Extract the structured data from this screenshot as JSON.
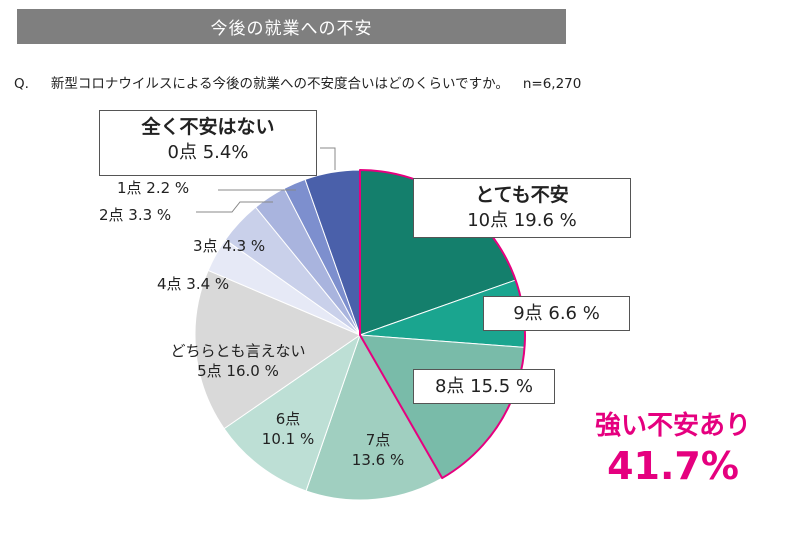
{
  "header": {
    "title": "今後の就業への不安"
  },
  "question": {
    "prefix": "Q.",
    "text": "新型コロナウイルスによる今後の就業への不安度合いはどのくらいですか。",
    "n": "n=6,270"
  },
  "chart_data": {
    "type": "pie",
    "categories": [
      "10点",
      "9点",
      "8点",
      "7点",
      "6点",
      "5点",
      "4点",
      "3点",
      "2点",
      "1点",
      "0点"
    ],
    "values": [
      19.6,
      6.6,
      15.5,
      13.6,
      10.1,
      16.0,
      3.4,
      4.3,
      3.3,
      2.2,
      5.4
    ],
    "colors": [
      "#147f6c",
      "#1aa58f",
      "#79bba9",
      "#a0cfc0",
      "#bddfd5",
      "#d9d9d9",
      "#e6e9f6",
      "#c9d0ea",
      "#a9b4de",
      "#7d8fce",
      "#4a60aa"
    ]
  },
  "labels": {
    "s10": {
      "name": "とても不安",
      "value": "10点  19.6 %"
    },
    "s9": "9点  6.6 %",
    "s8": "8点  15.5 %",
    "s7": {
      "name": "7点",
      "value": "13.6 %"
    },
    "s6": {
      "name": "6点",
      "value": "10.1 %"
    },
    "s5": {
      "name": "どちらとも言えない",
      "value": "5点  16.0 %"
    },
    "s4": "4点  3.4 %",
    "s3": "3点  4.3 %",
    "s2": "2点  3.3 %",
    "s1": "1点  2.2 %",
    "s0": {
      "name": "全く不安はない",
      "value": "0点  5.4%"
    }
  },
  "highlight": {
    "text": "強い不安あり",
    "value": "41.7%",
    "color": "#e5007f"
  }
}
